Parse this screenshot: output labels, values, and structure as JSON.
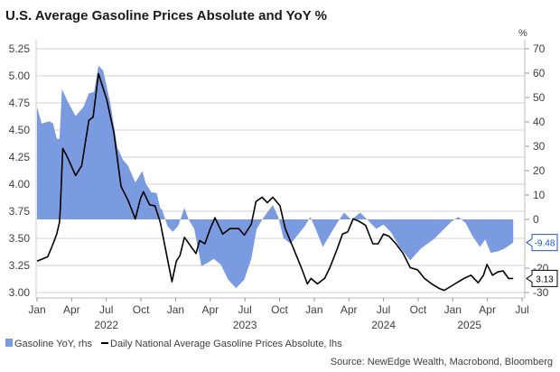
{
  "chart_data": {
    "type": "line",
    "title": "U.S. Average Gasoline Prices Absolute and YoY %",
    "source": "Source: NewEdge Wealth, Macrobond, Bloomberg",
    "left_axis": {
      "label": "",
      "range": [
        3.0,
        5.25
      ],
      "ticks": [
        "5.25",
        "5.00",
        "4.75",
        "4.50",
        "4.25",
        "4.00",
        "3.75",
        "3.50",
        "3.25",
        "3.00"
      ]
    },
    "right_axis": {
      "label": "%",
      "range": [
        -30,
        70
      ],
      "ticks": [
        "70",
        "60",
        "50",
        "40",
        "30",
        "20",
        "10",
        "0",
        "-20",
        "-30"
      ],
      "tick_values": [
        70,
        60,
        50,
        40,
        30,
        20,
        10,
        0,
        -20,
        -30
      ]
    },
    "x_axis": {
      "range": [
        2022.0,
        2025.5
      ],
      "month_ticks": [
        {
          "x": 2022.0,
          "label": "Jan"
        },
        {
          "x": 2022.25,
          "label": "Apr"
        },
        {
          "x": 2022.5,
          "label": "Jul"
        },
        {
          "x": 2022.75,
          "label": "Oct"
        },
        {
          "x": 2023.0,
          "label": "Jan"
        },
        {
          "x": 2023.25,
          "label": "Apr"
        },
        {
          "x": 2023.5,
          "label": "Jul"
        },
        {
          "x": 2023.75,
          "label": "Oct"
        },
        {
          "x": 2024.0,
          "label": "Jan"
        },
        {
          "x": 2024.25,
          "label": "Apr"
        },
        {
          "x": 2024.5,
          "label": "Jul"
        },
        {
          "x": 2024.75,
          "label": "Oct"
        },
        {
          "x": 2025.0,
          "label": "Jan"
        },
        {
          "x": 2025.25,
          "label": "Apr"
        },
        {
          "x": 2025.5,
          "label": "Jul"
        }
      ],
      "year_labels": [
        {
          "x": 2022.5,
          "label": "2022"
        },
        {
          "x": 2023.5,
          "label": "2023"
        },
        {
          "x": 2024.5,
          "label": "2024"
        },
        {
          "x": 2025.12,
          "label": "2025"
        }
      ]
    },
    "grid": true,
    "legend_position": "bottom-left",
    "series": [
      {
        "name": "Gasoline YoY, rhs",
        "axis": "right",
        "kind": "area",
        "color": "#7b9be0",
        "last_value_label": "-9.48",
        "x": [
          2022.0,
          2022.034,
          2022.09,
          2022.116,
          2022.142,
          2022.162,
          2022.18,
          2022.219,
          2022.278,
          2022.335,
          2022.374,
          2022.412,
          2022.443,
          2022.477,
          2022.528,
          2022.58,
          2022.619,
          2022.657,
          2022.709,
          2022.76,
          2022.786,
          2022.825,
          2022.863,
          2022.889,
          2022.902,
          2022.941,
          2022.979,
          2023.018,
          2023.064,
          2023.095,
          2023.134,
          2023.186,
          2023.224,
          2023.276,
          2023.327,
          2023.379,
          2023.436,
          2023.495,
          2023.546,
          2023.585,
          2023.637,
          2023.701,
          2023.74,
          2023.778,
          2023.83,
          2023.881,
          2023.933,
          2023.972,
          2024.01,
          2024.062,
          2024.113,
          2024.165,
          2024.216,
          2024.268,
          2024.332,
          2024.384,
          2024.448,
          2024.5,
          2024.552,
          2024.616,
          2024.693,
          2024.771,
          2024.861,
          2024.938,
          2024.99,
          2025.041,
          2025.093,
          2025.144,
          2025.196,
          2025.235,
          2025.273,
          2025.325,
          2025.376,
          2025.436
        ],
        "y": [
          46.1,
          39.3,
          40.3,
          39.3,
          33.1,
          33.0,
          53.5,
          48.6,
          42.4,
          46.1,
          51.7,
          52.3,
          63.1,
          61.0,
          48.0,
          29.4,
          24.5,
          22.0,
          15.2,
          19.8,
          14.6,
          11.1,
          10.8,
          4.6,
          4.0,
          -2.7,
          -5.1,
          -2.7,
          4.7,
          -0.2,
          -3.9,
          -19.2,
          -18.0,
          -16.2,
          -18.6,
          -24.7,
          -28.2,
          -24.7,
          -16.2,
          -3.9,
          1.0,
          5.9,
          1.0,
          -7.6,
          -10.0,
          -6.4,
          -2.7,
          1.0,
          -3.9,
          -11.3,
          -6.4,
          -1.5,
          2.8,
          -0.2,
          2.8,
          -0.2,
          -3.9,
          -2.1,
          -5.1,
          -11.3,
          -16.8,
          -11.9,
          -8.2,
          -3.9,
          -0.9,
          1.0,
          -1.5,
          -7.0,
          -11.3,
          -8.2,
          -13.7,
          -13.1,
          -11.9,
          -9.48
        ]
      },
      {
        "name": "Daily National Average Gasoline Prices Absolute, lhs",
        "axis": "left",
        "kind": "line",
        "color": "#000000",
        "last_value_label": "3.13",
        "x": [
          2022.0,
          2022.077,
          2022.116,
          2022.142,
          2022.162,
          2022.168,
          2022.186,
          2022.219,
          2022.278,
          2022.322,
          2022.374,
          2022.405,
          2022.443,
          2022.503,
          2022.554,
          2022.606,
          2022.657,
          2022.709,
          2022.747,
          2022.768,
          2022.812,
          2022.851,
          2022.889,
          2022.941,
          2022.974,
          2023.005,
          2023.031,
          2023.064,
          2023.108,
          2023.147,
          2023.173,
          2023.211,
          2023.25,
          2023.284,
          2023.314,
          2023.34,
          2023.392,
          2023.456,
          2023.495,
          2023.546,
          2023.58,
          2023.624,
          2023.662,
          2023.701,
          2023.753,
          2023.791,
          2023.843,
          2023.907,
          2023.951,
          2023.977,
          2024.023,
          2024.075,
          2024.113,
          2024.165,
          2024.204,
          2024.242,
          2024.281,
          2024.32,
          2024.371,
          2024.423,
          2024.461,
          2024.5,
          2024.539,
          2024.59,
          2024.642,
          2024.693,
          2024.745,
          2024.796,
          2024.848,
          2024.899,
          2024.938,
          2024.977,
          2025.028,
          2025.08,
          2025.131,
          2025.183,
          2025.222,
          2025.247,
          2025.286,
          2025.325,
          2025.363,
          2025.402,
          2025.436
        ],
        "y": [
          3.29,
          3.33,
          3.45,
          3.54,
          3.65,
          3.78,
          4.33,
          4.25,
          4.08,
          4.17,
          4.59,
          4.62,
          5.02,
          4.78,
          4.48,
          3.98,
          3.85,
          3.68,
          3.87,
          3.93,
          3.81,
          3.8,
          3.65,
          3.31,
          3.1,
          3.29,
          3.34,
          3.51,
          3.43,
          3.36,
          3.48,
          3.45,
          3.59,
          3.69,
          3.61,
          3.54,
          3.59,
          3.59,
          3.53,
          3.63,
          3.84,
          3.88,
          3.83,
          3.88,
          3.8,
          3.59,
          3.43,
          3.23,
          3.08,
          3.13,
          3.08,
          3.13,
          3.23,
          3.4,
          3.54,
          3.56,
          3.68,
          3.66,
          3.62,
          3.45,
          3.45,
          3.54,
          3.52,
          3.45,
          3.36,
          3.23,
          3.21,
          3.13,
          3.08,
          3.04,
          3.02,
          3.05,
          3.09,
          3.13,
          3.16,
          3.09,
          3.16,
          3.26,
          3.16,
          3.19,
          3.2,
          3.13,
          3.13
        ]
      }
    ]
  }
}
